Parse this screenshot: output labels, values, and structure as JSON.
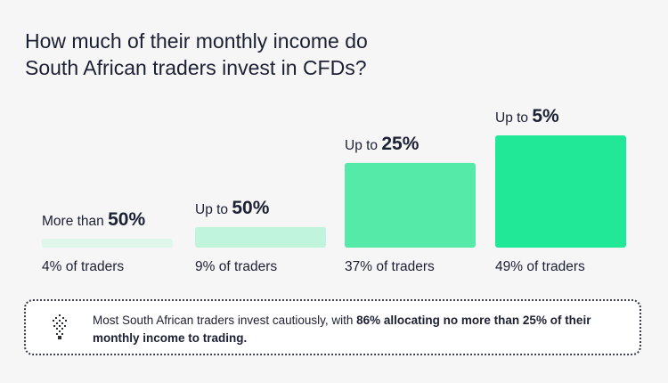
{
  "title_line1": "How much of their monthly income do",
  "title_line2": "South African traders invest in CFDs?",
  "chart_data": {
    "type": "bar",
    "categories": [
      "More than 50%",
      "Up to 50%",
      "Up to 25%",
      "Up to 5%"
    ],
    "labels": [
      {
        "prefix": "More than ",
        "pct": "50%"
      },
      {
        "prefix": "Up to ",
        "pct": "50%"
      },
      {
        "prefix": "Up to ",
        "pct": "25%"
      },
      {
        "prefix": "Up to ",
        "pct": "5%"
      }
    ],
    "values": [
      4,
      9,
      37,
      49
    ],
    "value_labels": [
      "4% of traders",
      "9% of traders",
      "37% of traders",
      "49% of traders"
    ],
    "colors": [
      "#def7ea",
      "#c0f4dc",
      "#55eaa8",
      "#21e896"
    ],
    "ylim": [
      0,
      49
    ]
  },
  "callout": {
    "text_before": "Most South African traders invest cautiously, with ",
    "text_bold": "86% allocating no more than 25% of their monthly income to trading.",
    "icon": "dotted-figure-icon"
  }
}
